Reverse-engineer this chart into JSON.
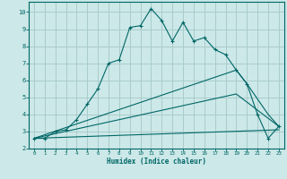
{
  "xlabel": "Humidex (Indice chaleur)",
  "background_color": "#cce8e8",
  "grid_color": "#aacccc",
  "line_color": "#006666",
  "xlim": [
    -0.5,
    23.5
  ],
  "ylim": [
    2,
    10.6
  ],
  "xticks": [
    0,
    1,
    2,
    3,
    4,
    5,
    6,
    7,
    8,
    9,
    10,
    11,
    12,
    13,
    14,
    15,
    16,
    17,
    18,
    19,
    20,
    21,
    22,
    23
  ],
  "yticks": [
    2,
    3,
    4,
    5,
    6,
    7,
    8,
    9,
    10
  ],
  "line1_x": [
    0,
    1,
    2,
    3,
    4,
    5,
    6,
    7,
    8,
    9,
    10,
    11,
    12,
    13,
    14,
    15,
    16,
    17,
    18,
    19,
    20,
    21,
    22,
    23
  ],
  "line1_y": [
    2.6,
    2.6,
    3.0,
    3.1,
    3.7,
    4.6,
    5.5,
    7.0,
    7.2,
    9.1,
    9.2,
    10.2,
    9.5,
    8.3,
    9.4,
    8.3,
    8.5,
    7.8,
    7.5,
    6.6,
    5.8,
    4.0,
    2.6,
    3.3
  ],
  "line2_x": [
    0,
    19,
    20,
    22,
    23
  ],
  "line2_y": [
    2.6,
    6.6,
    5.8,
    4.0,
    3.3
  ],
  "line3_x": [
    0,
    19,
    23
  ],
  "line3_y": [
    2.6,
    5.2,
    3.3
  ],
  "line4_x": [
    0,
    23
  ],
  "line4_y": [
    2.6,
    3.1
  ]
}
